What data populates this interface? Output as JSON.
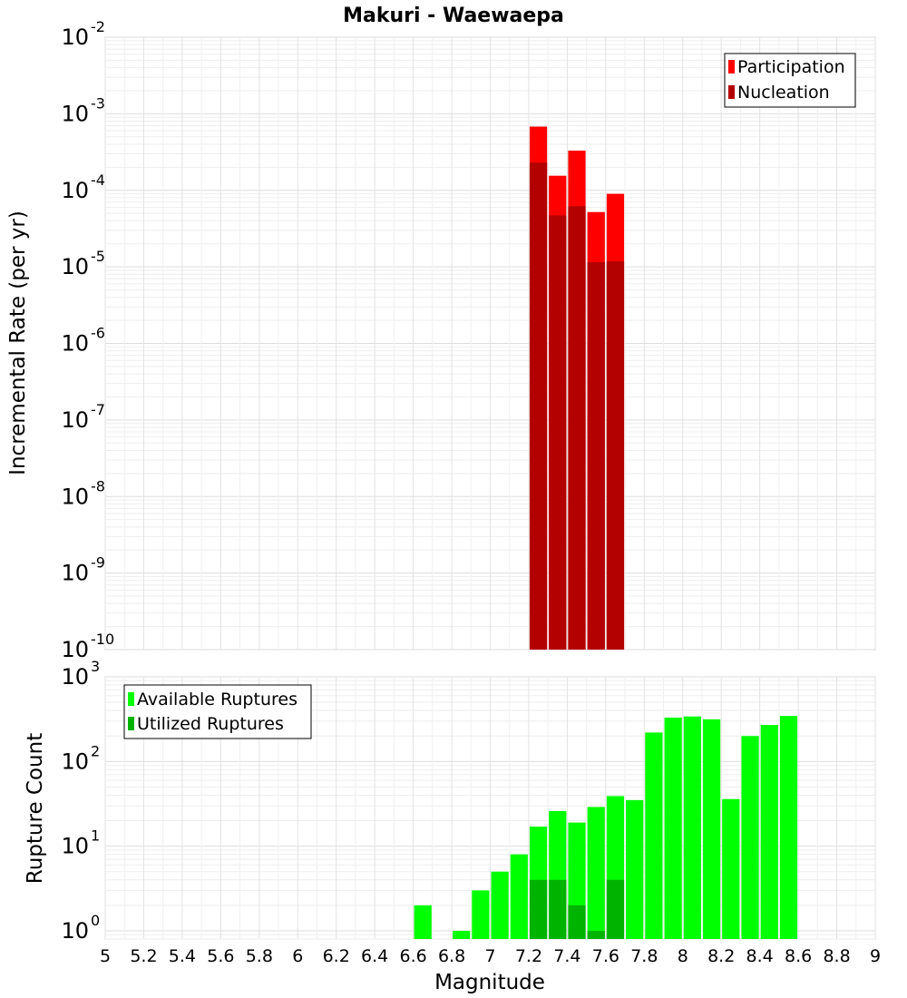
{
  "chart_data": [
    {
      "type": "bar",
      "title": "Makuri - Waewaepa",
      "xlabel": "",
      "ylabel": "Incremental Rate (per yr)",
      "yscale": "log",
      "ylim": [
        1e-10,
        0.01
      ],
      "xlim": [
        5,
        9
      ],
      "bin_width": 0.1,
      "grid": true,
      "legend_position": "top-right",
      "series": [
        {
          "name": "Participation",
          "color": "#ff0000",
          "points": [
            {
              "x": 7.25,
              "y": 0.00068
            },
            {
              "x": 7.35,
              "y": 0.000155
            },
            {
              "x": 7.45,
              "y": 0.00033
            },
            {
              "x": 7.55,
              "y": 5.2e-05
            },
            {
              "x": 7.65,
              "y": 9e-05
            }
          ]
        },
        {
          "name": "Nucleation",
          "color": "#b30000",
          "points": [
            {
              "x": 7.25,
              "y": 0.00023
            },
            {
              "x": 7.35,
              "y": 4.7e-05
            },
            {
              "x": 7.45,
              "y": 6.2e-05
            },
            {
              "x": 7.55,
              "y": 1.15e-05
            },
            {
              "x": 7.65,
              "y": 1.18e-05
            }
          ]
        }
      ],
      "y_ticks": [
        {
          "base": "10",
          "exp": "-10",
          "value": 1e-10
        },
        {
          "base": "10",
          "exp": "-9",
          "value": 1e-09
        },
        {
          "base": "10",
          "exp": "-8",
          "value": 1e-08
        },
        {
          "base": "10",
          "exp": "-7",
          "value": 1e-07
        },
        {
          "base": "10",
          "exp": "-6",
          "value": 1e-06
        },
        {
          "base": "10",
          "exp": "-5",
          "value": 1e-05
        },
        {
          "base": "10",
          "exp": "-4",
          "value": 0.0001
        },
        {
          "base": "10",
          "exp": "-3",
          "value": 0.001
        },
        {
          "base": "10",
          "exp": "-2",
          "value": 0.01
        }
      ]
    },
    {
      "type": "bar",
      "title": "",
      "xlabel": "Magnitude",
      "ylabel": "Rupture Count",
      "yscale": "log",
      "ylim": [
        0.8,
        1000
      ],
      "xlim": [
        5,
        9
      ],
      "bin_width": 0.1,
      "grid": true,
      "legend_position": "top-left",
      "series": [
        {
          "name": "Available Ruptures",
          "color": "#00ff00",
          "points": [
            {
              "x": 6.65,
              "y": 2
            },
            {
              "x": 6.85,
              "y": 1
            },
            {
              "x": 6.95,
              "y": 3
            },
            {
              "x": 7.05,
              "y": 5
            },
            {
              "x": 7.15,
              "y": 8
            },
            {
              "x": 7.25,
              "y": 17
            },
            {
              "x": 7.35,
              "y": 26
            },
            {
              "x": 7.45,
              "y": 19
            },
            {
              "x": 7.55,
              "y": 29
            },
            {
              "x": 7.65,
              "y": 39
            },
            {
              "x": 7.75,
              "y": 35
            },
            {
              "x": 7.85,
              "y": 220
            },
            {
              "x": 7.95,
              "y": 330
            },
            {
              "x": 8.05,
              "y": 340
            },
            {
              "x": 8.15,
              "y": 315
            },
            {
              "x": 8.25,
              "y": 36
            },
            {
              "x": 8.35,
              "y": 200
            },
            {
              "x": 8.45,
              "y": 270
            },
            {
              "x": 8.55,
              "y": 345
            }
          ]
        },
        {
          "name": "Utilized Ruptures",
          "color": "#00b300",
          "points": [
            {
              "x": 7.25,
              "y": 4
            },
            {
              "x": 7.35,
              "y": 4
            },
            {
              "x": 7.45,
              "y": 2
            },
            {
              "x": 7.55,
              "y": 1
            },
            {
              "x": 7.65,
              "y": 4
            }
          ]
        }
      ],
      "y_ticks": [
        {
          "base": "10",
          "exp": "0",
          "value": 1
        },
        {
          "base": "10",
          "exp": "1",
          "value": 10
        },
        {
          "base": "10",
          "exp": "2",
          "value": 100
        },
        {
          "base": "10",
          "exp": "3",
          "value": 1000
        }
      ],
      "x_ticks": [
        "5",
        "5.2",
        "5.4",
        "5.6",
        "5.8",
        "6",
        "6.2",
        "6.4",
        "6.6",
        "6.8",
        "7",
        "7.2",
        "7.4",
        "7.6",
        "7.8",
        "8",
        "8.2",
        "8.4",
        "8.6",
        "8.8",
        "9"
      ]
    }
  ]
}
